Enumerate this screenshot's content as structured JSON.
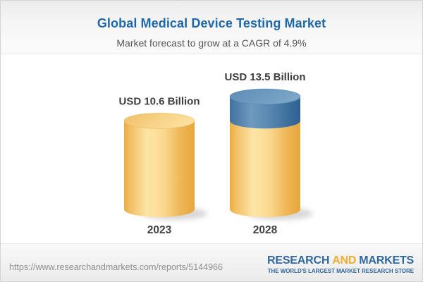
{
  "chart_data": {
    "type": "bar",
    "subtype": "3d-cylinder",
    "title": "Global Medical Device Testing Market",
    "subtitle": "Market forecast to grow at a CAGR of 4.9%",
    "unit": "USD Billion",
    "cagr_percent": 4.9,
    "categories": [
      "2023",
      "2028"
    ],
    "values": [
      10.6,
      13.5
    ],
    "value_labels": [
      "USD 10.6 Billion",
      "USD 13.5 Billion"
    ],
    "bars": [
      {
        "category": "2023",
        "value": 10.6,
        "label": "USD 10.6 Billion",
        "segments": [
          {
            "value": 10.6,
            "series": "base"
          }
        ]
      },
      {
        "category": "2028",
        "value": 13.5,
        "label": "USD 13.5 Billion",
        "segments": [
          {
            "value": 10.6,
            "series": "base"
          },
          {
            "value": 2.9,
            "series": "growth"
          }
        ]
      }
    ],
    "series_meta": {
      "base": {
        "name": "Market size (2023 level)",
        "color": "#F6CE7D"
      },
      "growth": {
        "name": "Forecast growth to 2028",
        "color": "#5D8BB3"
      }
    },
    "colors": {
      "base_body_gradient": [
        [
          "0%",
          "#E9AC44"
        ],
        [
          "8%",
          "#F1BE61"
        ],
        [
          "33%",
          "#FDE5A7"
        ],
        [
          "55%",
          "#FBDA90"
        ],
        [
          "80%",
          "#EFB757"
        ],
        [
          "100%",
          "#E6A63C"
        ]
      ],
      "base_cap_gradient": [
        [
          "0%",
          "#EFBE63"
        ],
        [
          "50%",
          "#F6D084"
        ],
        [
          "100%",
          "#FCE09E"
        ]
      ],
      "growth_body_gradient": [
        [
          "0%",
          "#40719E"
        ],
        [
          "30%",
          "#6E99BF"
        ],
        [
          "55%",
          "#5989B1"
        ],
        [
          "100%",
          "#2D6090"
        ]
      ],
      "growth_cap_gradient": [
        [
          "0%",
          "#5D8BB4"
        ],
        [
          "100%",
          "#7BA6C9"
        ]
      ],
      "base_cap_edge": "#E8AC45",
      "growth_cap_edge": "#44749F",
      "value_label_text": "#3E3E3E",
      "category_label_text": "#434343",
      "shadow": "#777777"
    },
    "legend": "none",
    "axes": "none"
  },
  "header": {
    "title_color": "#1E68A9",
    "subtitle_color": "#565656"
  },
  "footer": {
    "source_url": "https://www.researchandmarkets.com/reports/5144966",
    "logo": {
      "word1": "RESEARCH",
      "word2": "AND",
      "word3": "MARKETS",
      "tagline": "THE WORLD'S LARGEST MARKET RESEARCH STORE",
      "blue": "#30689E",
      "gold": "#EFAC31"
    }
  }
}
